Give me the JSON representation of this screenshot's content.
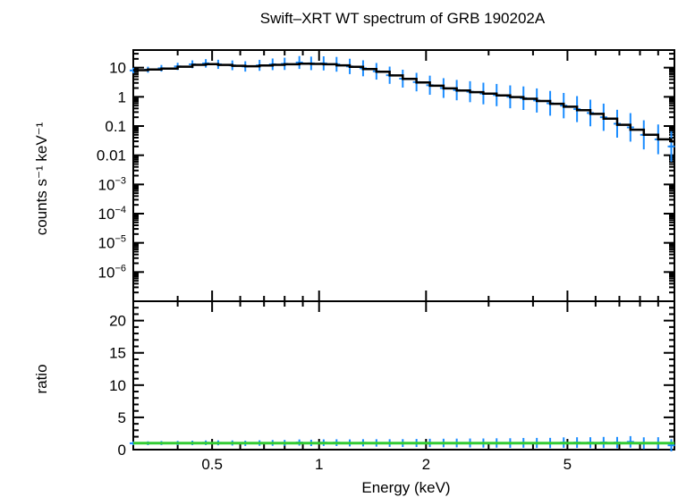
{
  "chart_data": [
    {
      "type": "line",
      "title": "Swift–XRT WT spectrum of GRB 190202A",
      "ylabel": "counts s⁻¹ keV⁻¹",
      "xlabel": "",
      "xscale": "log",
      "yscale": "log",
      "xlim": [
        0.3,
        10
      ],
      "ylim": [
        1e-07,
        40
      ],
      "y_ticks": [
        {
          "value": 10,
          "label": "10"
        },
        {
          "value": 1,
          "label": "1"
        },
        {
          "value": 0.1,
          "label": "0.1"
        },
        {
          "value": 0.01,
          "label": "0.01"
        },
        {
          "value": 0.001,
          "base": "10",
          "exp": "−3"
        },
        {
          "value": 0.0001,
          "base": "10",
          "exp": "−4"
        },
        {
          "value": 1e-05,
          "base": "10",
          "exp": "−5"
        },
        {
          "value": 1e-06,
          "base": "10",
          "exp": "−6"
        }
      ],
      "grid": false,
      "series": [
        {
          "kind": "data-points",
          "color": "#1a8cff",
          "x": [
            0.3,
            0.33,
            0.36,
            0.4,
            0.44,
            0.48,
            0.52,
            0.57,
            0.62,
            0.68,
            0.74,
            0.8,
            0.88,
            0.95,
            1.03,
            1.12,
            1.22,
            1.33,
            1.45,
            1.58,
            1.72,
            1.88,
            2.05,
            2.24,
            2.44,
            2.66,
            2.9,
            3.16,
            3.45,
            3.76,
            4.1,
            4.47,
            4.88,
            5.32,
            5.8,
            6.32,
            6.9,
            7.52,
            8.2,
            9.0,
            9.8
          ],
          "y": [
            8.0,
            8.5,
            9.5,
            11,
            13,
            14,
            13,
            12,
            11,
            12,
            13,
            13.5,
            15,
            14,
            14,
            13,
            11,
            9.5,
            7.5,
            5.5,
            4.2,
            3.2,
            2.5,
            2.0,
            1.7,
            1.5,
            1.3,
            1.15,
            1.0,
            0.9,
            0.75,
            0.6,
            0.5,
            0.38,
            0.28,
            0.2,
            0.12,
            0.09,
            0.05,
            0.035,
            0.02
          ]
        },
        {
          "kind": "model",
          "color": "#000000",
          "x": [
            0.3,
            0.33,
            0.36,
            0.4,
            0.44,
            0.48,
            0.52,
            0.57,
            0.62,
            0.68,
            0.74,
            0.8,
            0.88,
            0.95,
            1.03,
            1.12,
            1.22,
            1.33,
            1.45,
            1.58,
            1.72,
            1.88,
            2.05,
            2.24,
            2.44,
            2.66,
            2.9,
            3.16,
            3.45,
            3.76,
            4.1,
            4.47,
            4.88,
            5.32,
            5.8,
            6.32,
            6.9,
            7.52,
            8.2,
            9.0,
            9.8
          ],
          "y": [
            8.2,
            8.6,
            9.3,
            10.8,
            12.5,
            13.2,
            12.4,
            11.6,
            11.2,
            11.8,
            12.5,
            13.0,
            13.6,
            13.4,
            13.0,
            12.0,
            10.6,
            9.0,
            7.2,
            5.4,
            4.1,
            3.1,
            2.4,
            1.95,
            1.65,
            1.45,
            1.28,
            1.12,
            0.98,
            0.86,
            0.72,
            0.58,
            0.46,
            0.35,
            0.26,
            0.18,
            0.11,
            0.075,
            0.05,
            0.035,
            0.03
          ]
        }
      ]
    },
    {
      "type": "line",
      "xlabel": "Energy (keV)",
      "ylabel": "ratio",
      "xscale": "log",
      "yscale": "linear",
      "xlim": [
        0.3,
        10
      ],
      "ylim": [
        0,
        23
      ],
      "x_ticks": [
        {
          "value": 0.5,
          "label": "0.5"
        },
        {
          "value": 1,
          "label": "1"
        },
        {
          "value": 2,
          "label": "2"
        },
        {
          "value": 5,
          "label": "5"
        }
      ],
      "y_ticks": [
        {
          "value": 0,
          "label": "0"
        },
        {
          "value": 5,
          "label": "5"
        },
        {
          "value": 10,
          "label": "10"
        },
        {
          "value": 15,
          "label": "15"
        },
        {
          "value": 20,
          "label": "20"
        }
      ],
      "grid": false,
      "series": [
        {
          "kind": "data-points",
          "color": "#1a8cff",
          "x": [
            0.3,
            0.33,
            0.36,
            0.4,
            0.44,
            0.48,
            0.52,
            0.57,
            0.62,
            0.68,
            0.74,
            0.8,
            0.88,
            0.95,
            1.03,
            1.12,
            1.22,
            1.33,
            1.45,
            1.58,
            1.72,
            1.88,
            2.05,
            2.24,
            2.44,
            2.66,
            2.9,
            3.16,
            3.45,
            3.76,
            4.1,
            4.47,
            4.88,
            5.32,
            5.8,
            6.32,
            6.9,
            7.52,
            8.2,
            9.0,
            9.8
          ],
          "y": [
            0.98,
            0.99,
            1.02,
            1.02,
            1.04,
            1.06,
            1.05,
            1.03,
            0.98,
            1.02,
            1.04,
            1.04,
            1.1,
            1.04,
            1.08,
            1.08,
            1.04,
            1.06,
            1.04,
            1.02,
            1.02,
            1.03,
            1.04,
            1.03,
            1.03,
            1.03,
            1.02,
            1.03,
            1.02,
            1.05,
            1.04,
            1.03,
            1.09,
            1.09,
            1.08,
            1.11,
            1.09,
            1.2,
            1.0,
            1.0,
            0.67
          ]
        },
        {
          "kind": "unity",
          "color": "#33cc33",
          "x": [
            0.3,
            10
          ],
          "y": [
            1,
            1
          ]
        }
      ]
    }
  ]
}
